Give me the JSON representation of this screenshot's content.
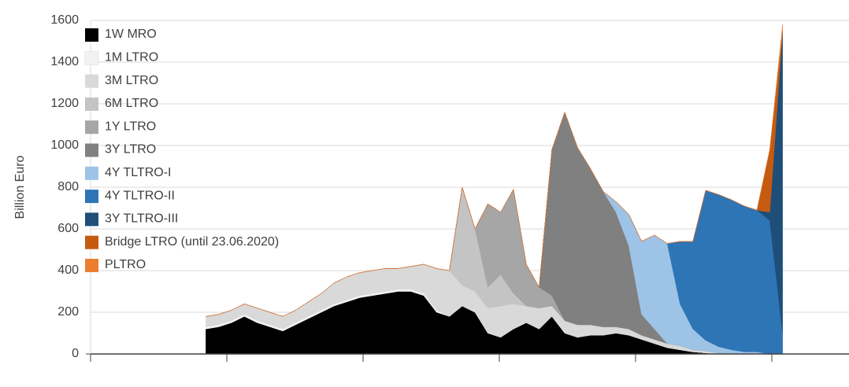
{
  "chart_data": {
    "type": "stacked_area",
    "y_label": "Billion Euro",
    "ylim": [
      0,
      1600
    ],
    "yticks": [
      0,
      200,
      400,
      600,
      800,
      1000,
      1200,
      1400,
      1600
    ],
    "grid": true,
    "legend": "top-left",
    "categories": [
      null,
      null,
      null,
      null,
      null,
      null,
      null,
      null,
      null,
      null,
      null,
      null,
      null,
      null,
      null,
      null,
      null,
      null,
      null,
      null,
      null,
      null,
      null,
      null,
      null,
      null,
      null,
      null,
      null,
      null,
      null,
      null,
      null,
      null,
      null,
      null,
      null,
      null,
      null,
      null,
      null,
      null,
      null,
      null,
      null,
      null,
      null,
      null,
      null,
      null,
      null,
      null,
      null,
      null,
      null,
      null,
      null,
      null,
      null,
      null
    ],
    "series": [
      {
        "name": "1W MRO",
        "color": "#000000",
        "values": [
          null,
          null,
          null,
          null,
          null,
          null,
          null,
          null,
          null,
          120,
          130,
          150,
          180,
          150,
          130,
          110,
          140,
          170,
          200,
          230,
          250,
          270,
          280,
          290,
          300,
          300,
          280,
          200,
          180,
          230,
          200,
          100,
          80,
          120,
          150,
          120,
          180,
          100,
          80,
          90,
          90,
          100,
          90,
          70,
          50,
          30,
          20,
          10,
          5,
          0,
          0,
          0,
          0,
          0,
          0,
          null,
          null,
          null,
          null,
          null
        ]
      },
      {
        "name": "1M LTRO",
        "color": "#f2f2f2",
        "values": [
          null,
          null,
          null,
          null,
          null,
          null,
          null,
          null,
          null,
          10,
          10,
          10,
          10,
          10,
          10,
          10,
          10,
          10,
          10,
          10,
          10,
          10,
          10,
          10,
          10,
          10,
          10,
          10,
          0,
          0,
          0,
          0,
          0,
          0,
          0,
          0,
          0,
          0,
          0,
          0,
          0,
          0,
          0,
          0,
          0,
          0,
          0,
          0,
          0,
          0,
          0,
          0,
          0,
          0,
          0,
          null,
          null,
          null,
          null,
          null
        ]
      },
      {
        "name": "3M LTRO",
        "color": "#d9d9d9",
        "values": [
          null,
          null,
          null,
          null,
          null,
          null,
          null,
          null,
          null,
          50,
          50,
          50,
          50,
          60,
          60,
          60,
          60,
          70,
          80,
          100,
          110,
          110,
          110,
          110,
          100,
          110,
          140,
          200,
          220,
          100,
          100,
          120,
          150,
          120,
          80,
          100,
          50,
          60,
          60,
          50,
          40,
          30,
          30,
          20,
          20,
          20,
          20,
          10,
          10,
          5,
          0,
          0,
          0,
          0,
          0,
          null,
          null,
          null,
          null,
          null
        ]
      },
      {
        "name": "6M LTRO",
        "color": "#c4c4c4",
        "values": [
          null,
          null,
          null,
          null,
          null,
          null,
          null,
          null,
          null,
          0,
          0,
          0,
          0,
          0,
          0,
          0,
          0,
          0,
          0,
          0,
          0,
          0,
          0,
          0,
          0,
          0,
          0,
          0,
          0,
          470,
          300,
          100,
          150,
          50,
          0,
          0,
          0,
          0,
          0,
          0,
          0,
          0,
          0,
          0,
          0,
          0,
          0,
          0,
          0,
          0,
          0,
          0,
          0,
          0,
          0,
          null,
          null,
          null,
          null,
          null
        ]
      },
      {
        "name": "1Y LTRO",
        "color": "#a6a6a6",
        "values": [
          null,
          null,
          null,
          null,
          null,
          null,
          null,
          null,
          null,
          0,
          0,
          0,
          0,
          0,
          0,
          0,
          0,
          0,
          0,
          0,
          0,
          0,
          0,
          0,
          0,
          0,
          0,
          0,
          0,
          0,
          0,
          400,
          300,
          500,
          200,
          100,
          50,
          0,
          0,
          0,
          0,
          0,
          0,
          0,
          0,
          0,
          0,
          0,
          0,
          0,
          0,
          0,
          0,
          0,
          0,
          null,
          null,
          null,
          null,
          null
        ]
      },
      {
        "name": "3Y LTRO",
        "color": "#808080",
        "values": [
          null,
          null,
          null,
          null,
          null,
          null,
          null,
          null,
          null,
          0,
          0,
          0,
          0,
          0,
          0,
          0,
          0,
          0,
          0,
          0,
          0,
          0,
          0,
          0,
          0,
          0,
          0,
          0,
          0,
          0,
          0,
          0,
          0,
          0,
          0,
          0,
          700,
          1000,
          850,
          750,
          650,
          550,
          400,
          100,
          50,
          0,
          0,
          0,
          0,
          0,
          0,
          0,
          0,
          0,
          0,
          null,
          null,
          null,
          null,
          null
        ]
      },
      {
        "name": "4Y TLTRO-I",
        "color": "#9dc3e6",
        "values": [
          null,
          null,
          null,
          null,
          null,
          null,
          null,
          null,
          null,
          0,
          0,
          0,
          0,
          0,
          0,
          0,
          0,
          0,
          0,
          0,
          0,
          0,
          0,
          0,
          0,
          0,
          0,
          0,
          0,
          0,
          0,
          0,
          0,
          0,
          0,
          0,
          0,
          0,
          0,
          0,
          0,
          50,
          150,
          350,
          450,
          480,
          200,
          100,
          50,
          30,
          20,
          10,
          10,
          0,
          0,
          null,
          null,
          null,
          null,
          null
        ]
      },
      {
        "name": "4Y TLTRO-II",
        "color": "#2e75b6",
        "values": [
          null,
          null,
          null,
          null,
          null,
          null,
          null,
          null,
          null,
          0,
          0,
          0,
          0,
          0,
          0,
          0,
          0,
          0,
          0,
          0,
          0,
          0,
          0,
          0,
          0,
          0,
          0,
          0,
          0,
          0,
          0,
          0,
          0,
          0,
          0,
          0,
          0,
          0,
          0,
          0,
          0,
          0,
          0,
          0,
          0,
          0,
          300,
          420,
          720,
          730,
          720,
          700,
          680,
          640,
          100,
          null,
          null,
          null,
          null,
          null
        ]
      },
      {
        "name": "3Y TLTRO-III",
        "color": "#1f4e79",
        "values": [
          null,
          null,
          null,
          null,
          null,
          null,
          null,
          null,
          null,
          0,
          0,
          0,
          0,
          0,
          0,
          0,
          0,
          0,
          0,
          0,
          0,
          0,
          0,
          0,
          0,
          0,
          0,
          0,
          0,
          0,
          0,
          0,
          0,
          0,
          0,
          0,
          0,
          0,
          0,
          0,
          0,
          0,
          0,
          0,
          0,
          0,
          0,
          0,
          0,
          0,
          0,
          0,
          0,
          40,
          1450,
          null,
          null,
          null,
          null,
          null
        ]
      },
      {
        "name": "Bridge LTRO (until 23.06.2020)",
        "color": "#c55a11",
        "values": [
          null,
          null,
          null,
          null,
          null,
          null,
          null,
          null,
          null,
          0,
          0,
          0,
          0,
          0,
          0,
          0,
          0,
          0,
          0,
          0,
          0,
          0,
          0,
          0,
          0,
          0,
          0,
          0,
          0,
          0,
          0,
          0,
          0,
          0,
          0,
          0,
          0,
          0,
          0,
          0,
          0,
          0,
          0,
          0,
          0,
          0,
          0,
          0,
          0,
          0,
          0,
          0,
          0,
          300,
          0,
          null,
          null,
          null,
          null,
          null
        ]
      },
      {
        "name": "PLTRO",
        "color": "#ed7d31",
        "values": [
          null,
          null,
          null,
          null,
          null,
          null,
          null,
          null,
          null,
          0,
          0,
          0,
          0,
          0,
          0,
          0,
          0,
          0,
          0,
          0,
          0,
          0,
          0,
          0,
          0,
          0,
          0,
          0,
          0,
          0,
          0,
          0,
          0,
          0,
          0,
          0,
          0,
          0,
          0,
          0,
          0,
          0,
          0,
          0,
          0,
          0,
          0,
          0,
          0,
          0,
          0,
          0,
          0,
          0,
          30,
          null,
          null,
          null,
          null,
          null
        ]
      }
    ]
  }
}
